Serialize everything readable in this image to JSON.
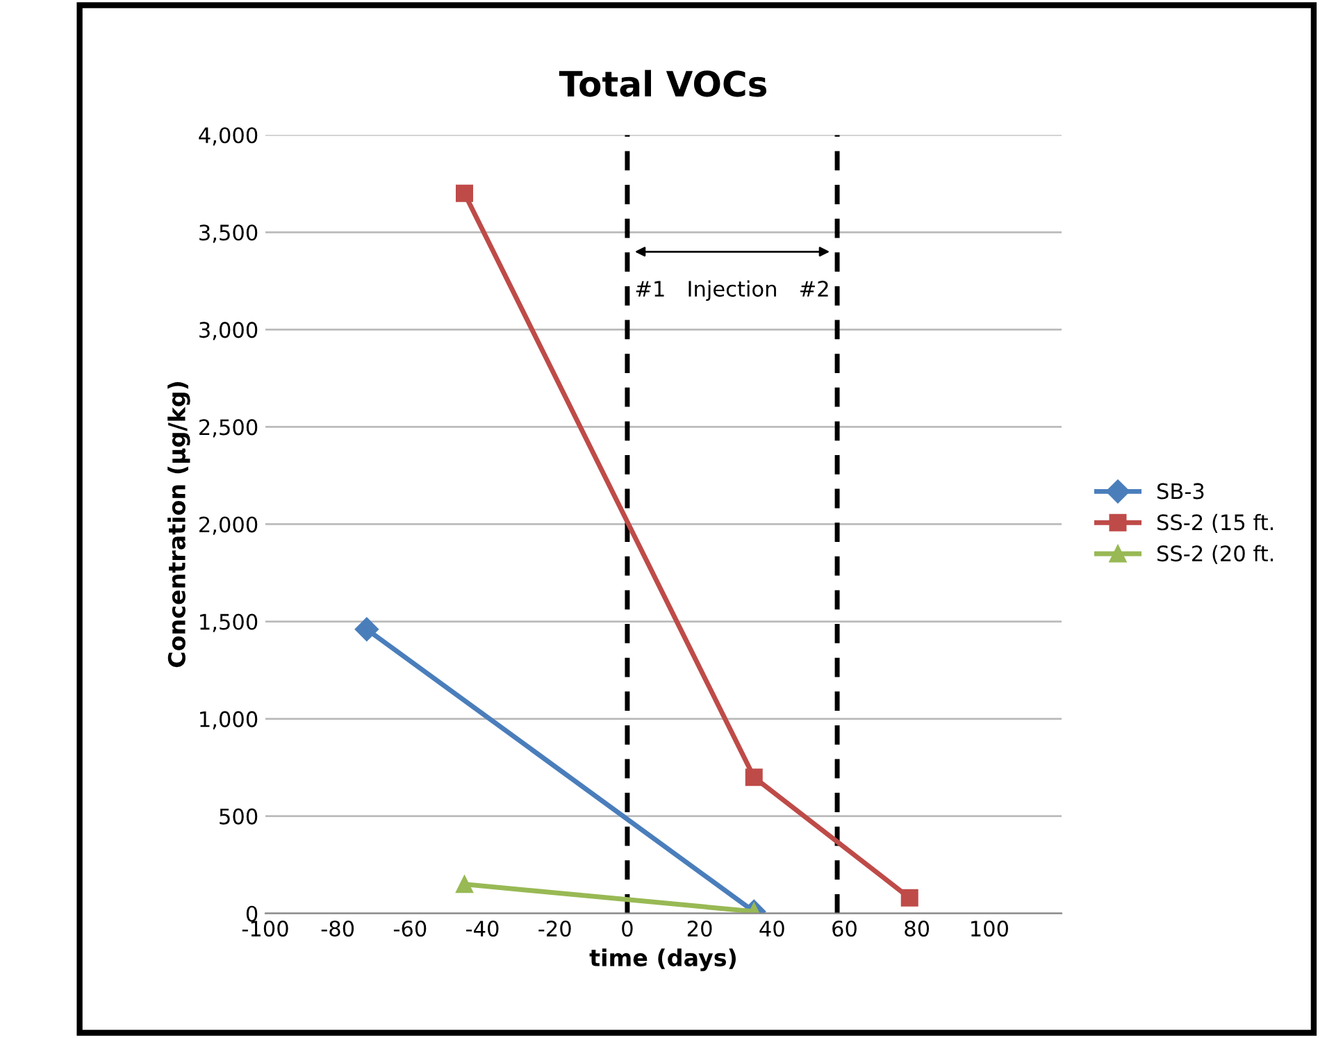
{
  "chart_data": {
    "type": "line",
    "title": "Total VOCs",
    "xlabel": "time (days)",
    "ylabel": "Concentration (µg/kg)",
    "xlim": [
      -100,
      120
    ],
    "xticks": [
      -100,
      -80,
      -60,
      -40,
      -20,
      0,
      20,
      40,
      60,
      80,
      100
    ],
    "ylim": [
      0,
      4000
    ],
    "yticks": [
      {
        "value": 0,
        "label": "0"
      },
      {
        "value": 500,
        "label": "500"
      },
      {
        "value": 1000,
        "label": "1,000"
      },
      {
        "value": 1500,
        "label": "1,500"
      },
      {
        "value": 2000,
        "label": "2,000"
      },
      {
        "value": 2500,
        "label": "2,500"
      },
      {
        "value": 3000,
        "label": "3,000"
      },
      {
        "value": 3500,
        "label": "3,500"
      },
      {
        "value": 4000,
        "label": "4,000"
      }
    ],
    "grid": "y",
    "legend": "right",
    "series": [
      {
        "name": "SB-3",
        "color": "#4a7ebb",
        "marker": "diamond",
        "x": [
          -72,
          35
        ],
        "values": [
          1460,
          10
        ]
      },
      {
        "name": "SS-2 (15 ft.",
        "color": "#be4b48",
        "marker": "square",
        "x": [
          -45,
          35,
          78
        ],
        "values": [
          3700,
          700,
          80
        ]
      },
      {
        "name": "SS-2 (20 ft.",
        "color": "#98b954",
        "marker": "triangle",
        "x": [
          -45,
          35
        ],
        "values": [
          150,
          10
        ]
      }
    ],
    "ref_lines": [
      {
        "axis": "x",
        "value": 0,
        "color": "#000000",
        "line_style": "dashed"
      },
      {
        "axis": "x",
        "value": 58,
        "color": "#000000",
        "line_style": "dashed"
      }
    ],
    "annotations": [
      "#1",
      "Injection",
      "#2"
    ]
  }
}
